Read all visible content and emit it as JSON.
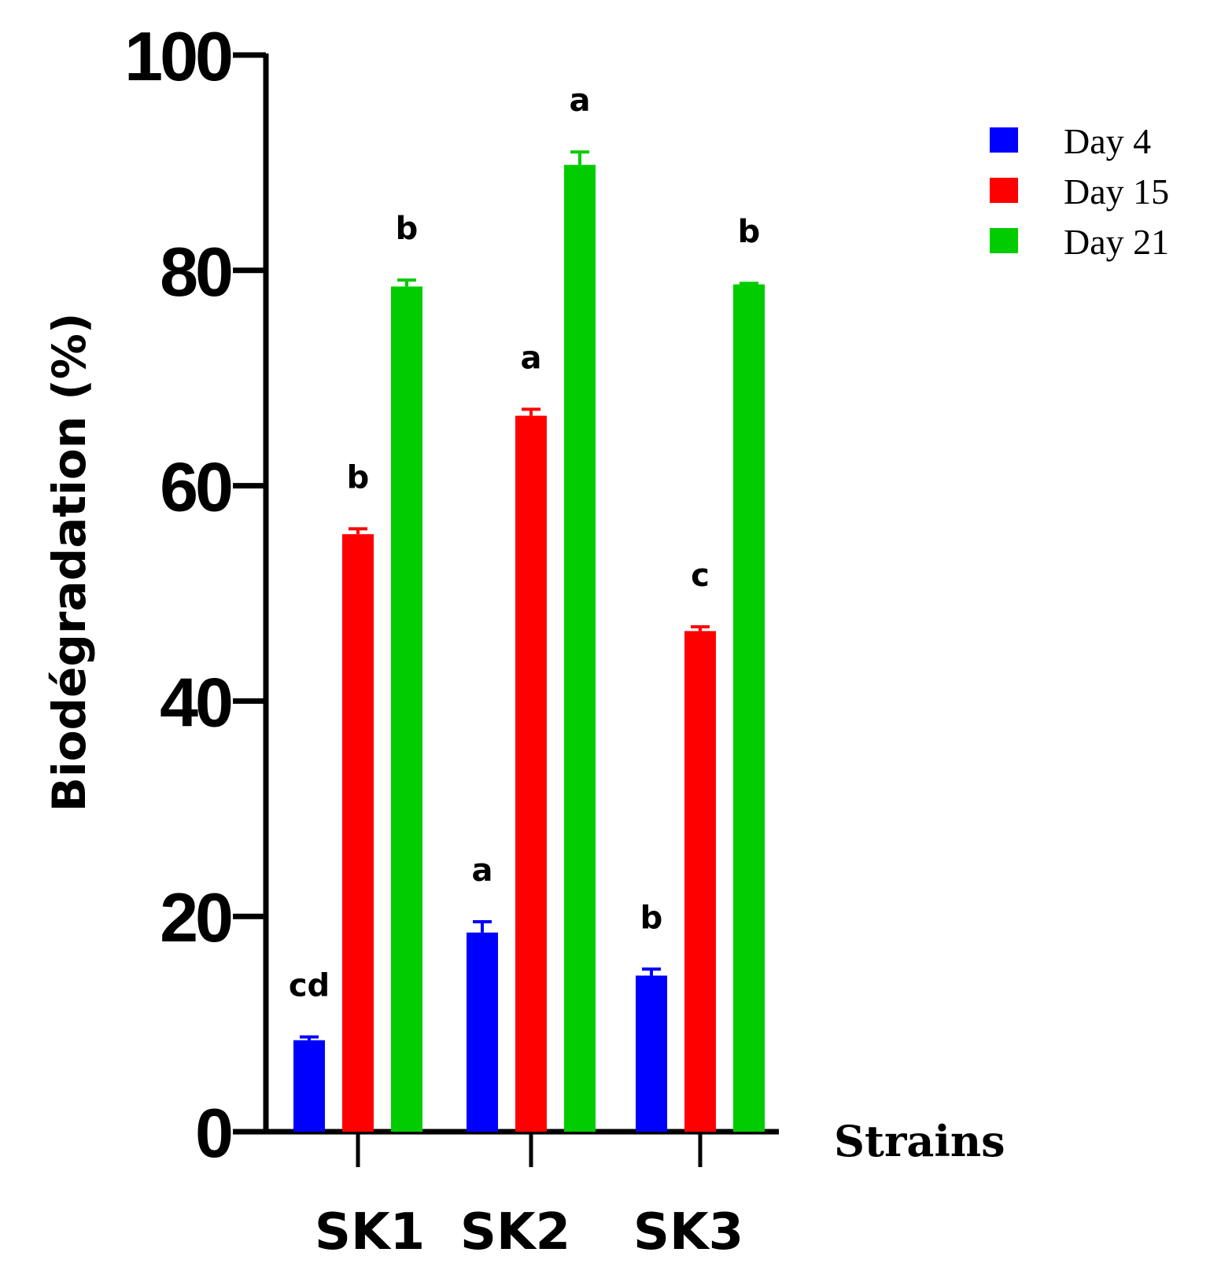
{
  "chart_data": {
    "type": "bar",
    "title": "",
    "xlabel": "Strains",
    "ylabel": "Biodégradation (%)",
    "ylim": [
      0,
      100
    ],
    "yticks": [
      0,
      20,
      40,
      60,
      80,
      100
    ],
    "grid": false,
    "legend_position": "top-right",
    "categories": [
      "SK1",
      "SK2",
      "SK3"
    ],
    "series": [
      {
        "name": "Day 4",
        "color": "#0000ff",
        "values": [
          8.5,
          18.5,
          14.5
        ],
        "errors": [
          0.3,
          1.0,
          0.6
        ],
        "letters": [
          "cd",
          "a",
          "b"
        ]
      },
      {
        "name": "Day 15",
        "color": "#ff0000",
        "values": [
          55.5,
          66.5,
          46.5
        ],
        "errors": [
          0.5,
          0.6,
          0.4
        ],
        "letters": [
          "b",
          "a",
          "c"
        ]
      },
      {
        "name": "Day 21",
        "color": "#00cc00",
        "values": [
          78.5,
          89.8,
          78.7
        ],
        "errors": [
          0.6,
          1.2,
          0.1
        ],
        "letters": [
          "b",
          "a",
          "b"
        ]
      }
    ]
  }
}
